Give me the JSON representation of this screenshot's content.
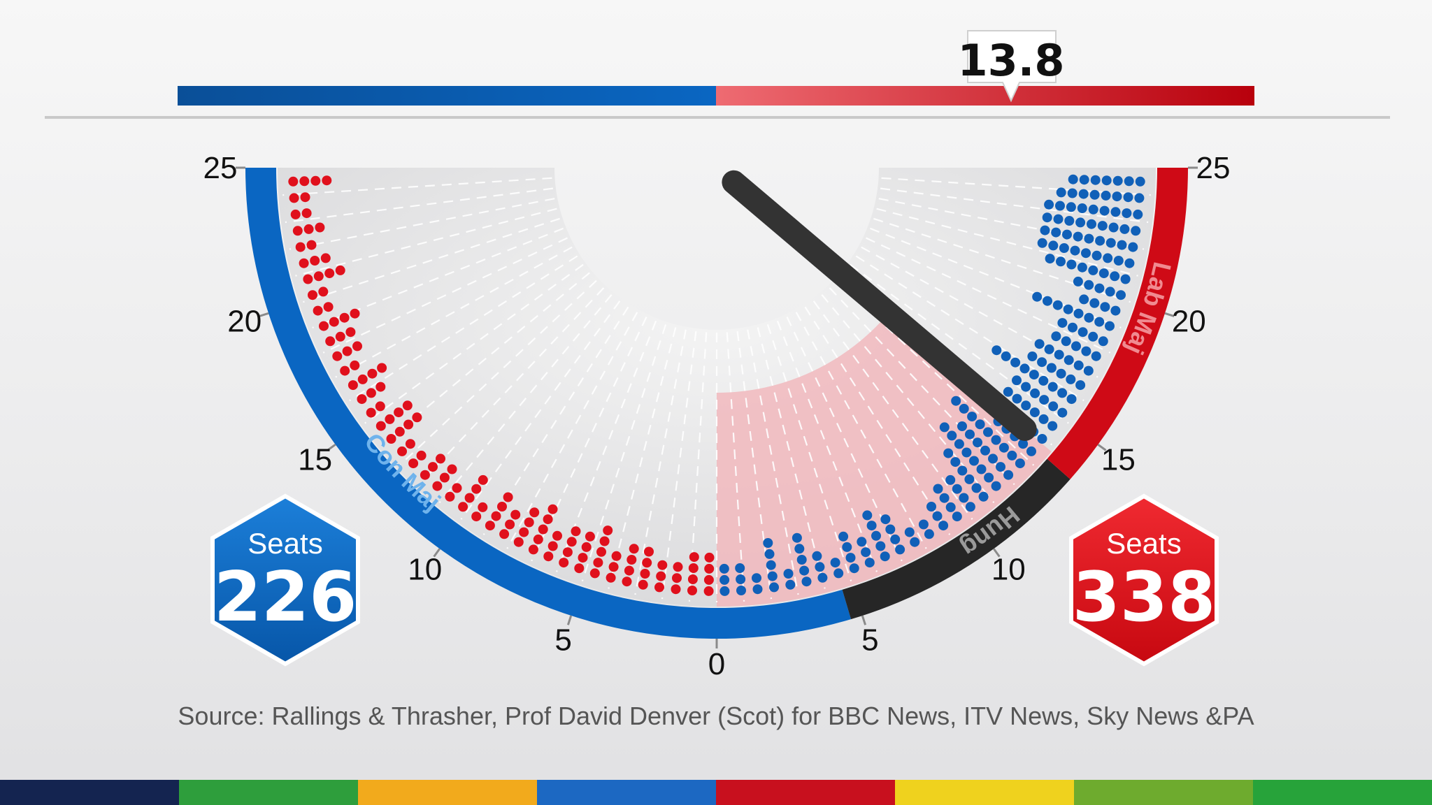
{
  "chart_data": {
    "type": "gauge",
    "value": 13.8,
    "value_label": "13.8",
    "axis_ticks_left": [
      "0",
      "5",
      "10",
      "15",
      "20",
      "25"
    ],
    "axis_ticks_right": [
      "5",
      "10",
      "15",
      "20",
      "25"
    ],
    "range": [
      -25,
      25
    ],
    "zones": [
      {
        "label": "Con Maj",
        "from": -25,
        "to": 4.6,
        "color": "#0a66c2"
      },
      {
        "label": "Hung",
        "from": 4.6,
        "to": 13.5,
        "color": "#262626"
      },
      {
        "label": "Lab Maj",
        "from": 13.5,
        "to": 25,
        "color": "#cf0a16"
      }
    ],
    "highlight_sector": [
      0,
      13.8
    ],
    "left_seats": {
      "title": "Seats",
      "value": "226",
      "color": "#0a66c2"
    },
    "right_seats": {
      "title": "Seats",
      "value": "338",
      "color": "#e3121b"
    }
  },
  "source": "Source: Rallings & Thrasher, Prof David Denver (Scot) for BBC News, ITV News, Sky News &PA",
  "stripe_colors": [
    "#142450",
    "#2e9e3c",
    "#f2aa1c",
    "#1c68c2",
    "#c8101e",
    "#efd21e",
    "#6eab2e",
    "#27a33a"
  ]
}
